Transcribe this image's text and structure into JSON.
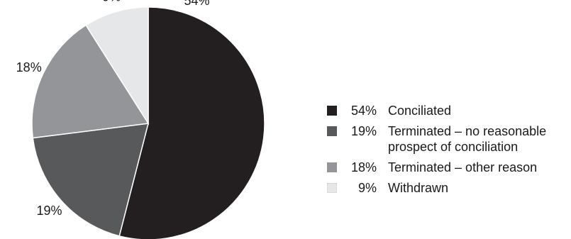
{
  "chart_data": {
    "type": "pie",
    "title": "",
    "slices": [
      {
        "label": "Conciliated",
        "value": 54,
        "display": "54%",
        "color": "#231f20"
      },
      {
        "label": "Terminated – no reasonable prospect of conciliation",
        "value": 19,
        "display": "19%",
        "color": "#58595b"
      },
      {
        "label": "Terminated – other reason",
        "value": 18,
        "display": "18%",
        "color": "#939598"
      },
      {
        "label": "Withdrawn",
        "value": 9,
        "display": "9%",
        "color": "#e6e7e8"
      }
    ],
    "legend_position": "right",
    "slice_order": "clockwise from 12 o'clock"
  }
}
